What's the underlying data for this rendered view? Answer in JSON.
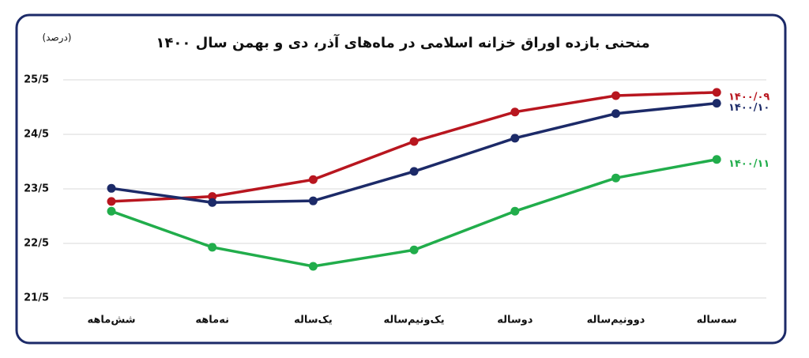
{
  "chart_data": {
    "type": "line",
    "title": "منحنی بازده اوراق خزانه اسلامی در ماه‌های آذر، دی و بهمن سال ۱۴۰۰",
    "y_label": "(درصد)",
    "categories": [
      "شش‌ماهه",
      "نه‌ماهه",
      "یک‌ساله",
      "یک‌ونیم‌ساله",
      "دوساله",
      "دوونیم‌ساله",
      "سه‌ساله"
    ],
    "series": [
      {
        "name": "۱۴۰۰/۰۹",
        "color": "#b8161f",
        "values": [
          23.27,
          23.36,
          23.67,
          24.37,
          24.91,
          25.21,
          25.27
        ]
      },
      {
        "name": "۱۴۰۰/۱۰",
        "color": "#1c2a68",
        "values": [
          23.51,
          23.25,
          23.28,
          23.82,
          24.43,
          24.88,
          25.07
        ]
      },
      {
        "name": "۱۴۰۰/۱۱",
        "color": "#21ad4b",
        "values": [
          23.09,
          22.43,
          22.08,
          22.38,
          23.09,
          23.7,
          24.04
        ]
      }
    ],
    "ylim": [
      21.5,
      25.5
    ],
    "yticks": [
      {
        "value": 21.5,
        "label": "21/5"
      },
      {
        "value": 22.5,
        "label": "22/5"
      },
      {
        "value": 23.5,
        "label": "23/5"
      },
      {
        "value": 24.5,
        "label": "24/5"
      },
      {
        "value": 25.5,
        "label": "25/5"
      }
    ],
    "grid": true
  }
}
